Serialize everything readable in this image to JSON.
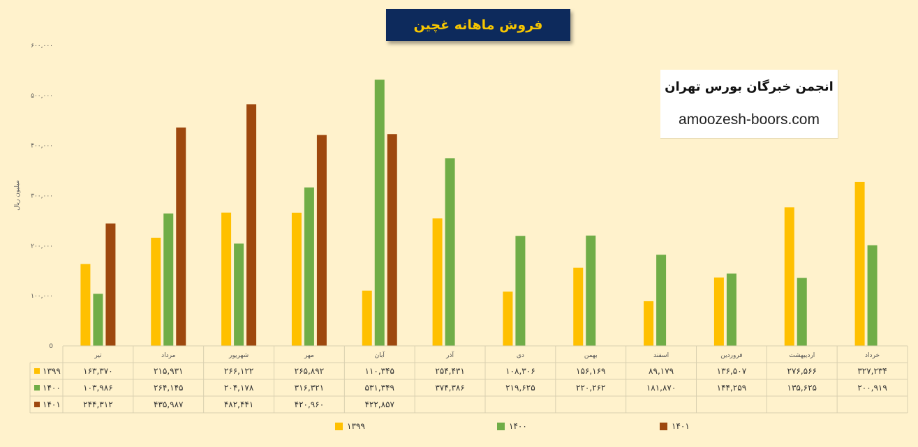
{
  "chart_data": {
    "type": "bar",
    "title": "فروش ماهانه غچین",
    "ylabel": "میلیون ریال",
    "ylim": [
      0,
      600000
    ],
    "yticks": [
      0,
      100000,
      200000,
      300000,
      400000,
      500000,
      600000
    ],
    "ytick_labels": [
      "0",
      "۱۰۰,۰۰۰",
      "۲۰۰,۰۰۰",
      "۳۰۰,۰۰۰",
      "۴۰۰,۰۰۰",
      "۵۰۰,۰۰۰",
      "۶۰۰,۰۰۰"
    ],
    "legend_position": "bottom",
    "grid": false,
    "categories": [
      "تیر",
      "مرداد",
      "شهریور",
      "مهر",
      "آبان",
      "آذر",
      "دی",
      "بهمن",
      "اسفند",
      "فروردین",
      "اردیبهشت",
      "خرداد"
    ],
    "series": [
      {
        "name": "۱۳۹۹",
        "color": "#FFC000",
        "values": [
          163370,
          215931,
          266122,
          265892,
          110345,
          254431,
          108306,
          156169,
          89179,
          136507,
          276566,
          327234
        ],
        "labels": [
          "۱۶۳,۳۷۰",
          "۲۱۵,۹۳۱",
          "۲۶۶,۱۲۲",
          "۲۶۵,۸۹۲",
          "۱۱۰,۳۴۵",
          "۲۵۴,۴۳۱",
          "۱۰۸,۳۰۶",
          "۱۵۶,۱۶۹",
          "۸۹,۱۷۹",
          "۱۳۶,۵۰۷",
          "۲۷۶,۵۶۶",
          "۳۲۷,۲۳۴"
        ]
      },
      {
        "name": "۱۴۰۰",
        "color": "#70AD47",
        "values": [
          103986,
          264145,
          204178,
          316321,
          531349,
          374386,
          219625,
          220262,
          181870,
          144259,
          135625,
          200919
        ],
        "labels": [
          "۱۰۳,۹۸۶",
          "۲۶۴,۱۴۵",
          "۲۰۴,۱۷۸",
          "۳۱۶,۳۲۱",
          "۵۳۱,۳۴۹",
          "۳۷۴,۳۸۶",
          "۲۱۹,۶۲۵",
          "۲۲۰,۲۶۲",
          "۱۸۱,۸۷۰",
          "۱۴۴,۲۵۹",
          "۱۳۵,۶۲۵",
          "۲۰۰,۹۱۹"
        ]
      },
      {
        "name": "۱۴۰۱",
        "color": "#9E480E",
        "values": [
          244312,
          435987,
          482441,
          420960,
          422857,
          null,
          null,
          null,
          null,
          null,
          null,
          null
        ],
        "labels": [
          "۲۴۴,۳۱۲",
          "۴۳۵,۹۸۷",
          "۴۸۲,۴۴۱",
          "۴۲۰,۹۶۰",
          "۴۲۲,۸۵۷",
          "",
          "",
          "",
          "",
          "",
          "",
          ""
        ]
      }
    ]
  },
  "watermark": {
    "name": "انجمن خبرگان بورس تهران",
    "url": "amoozesh-boors.com"
  }
}
